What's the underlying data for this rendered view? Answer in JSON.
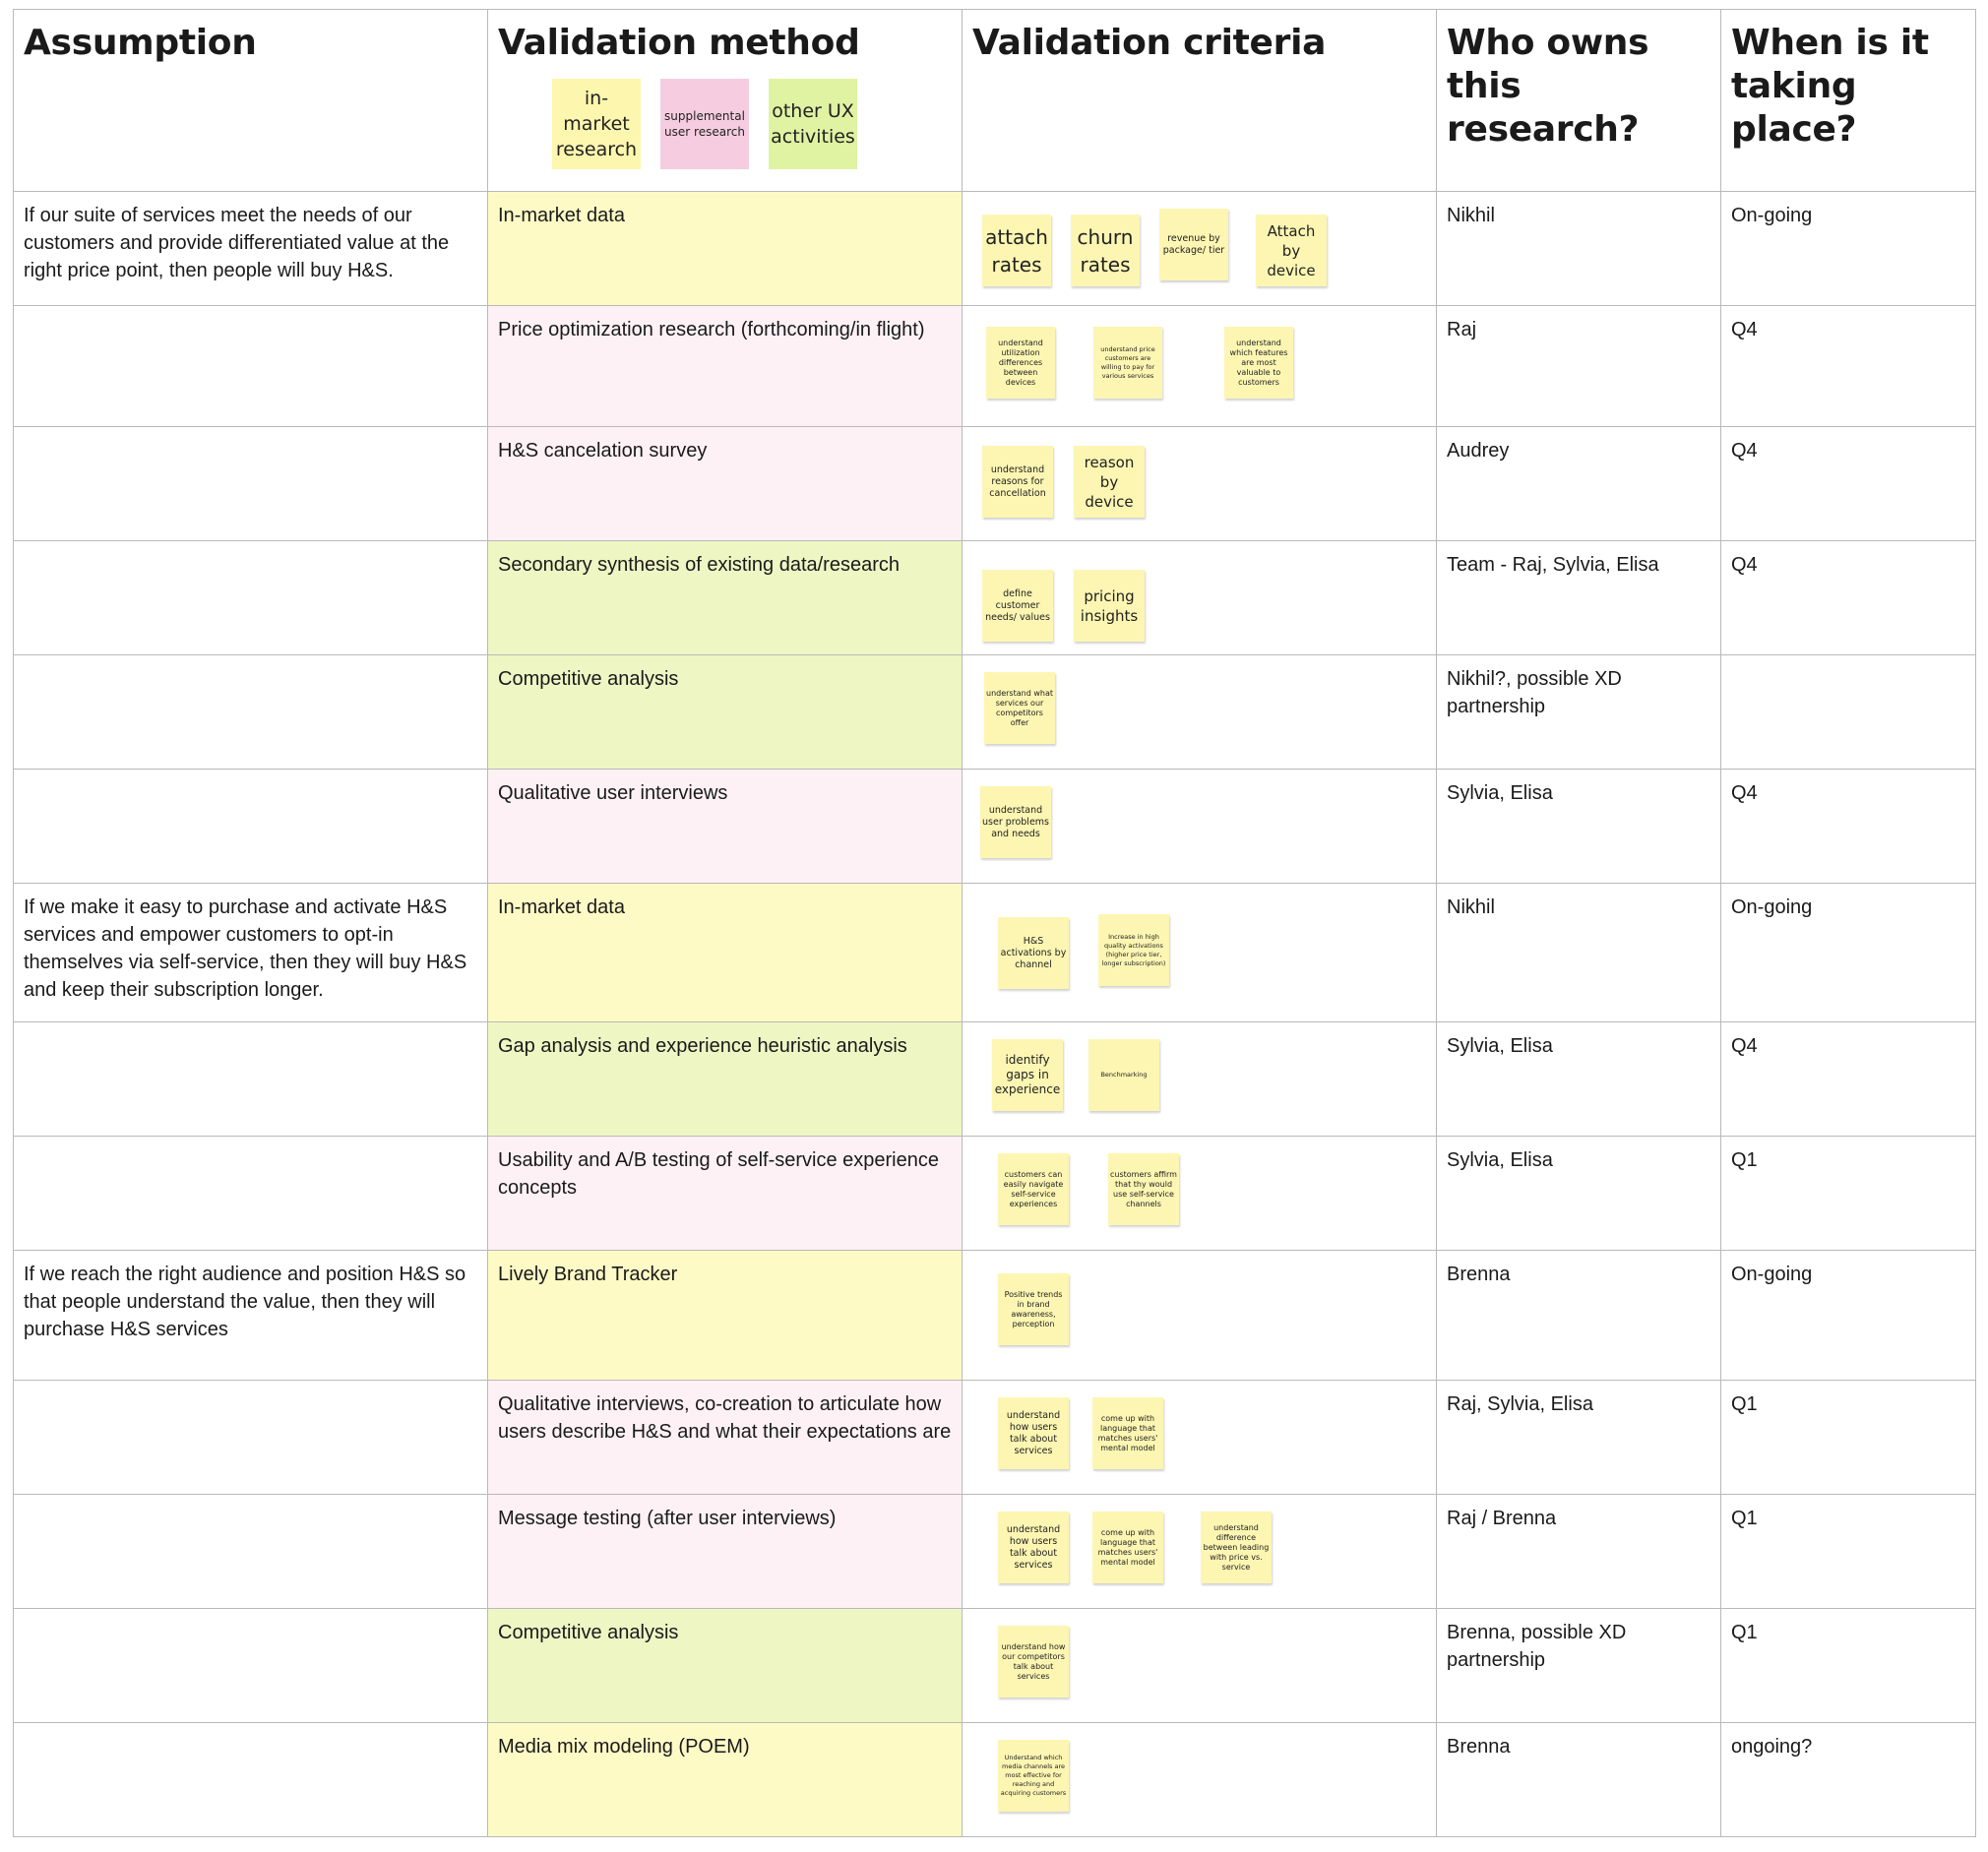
{
  "headers": {
    "assumption": "Assumption",
    "method": "Validation method",
    "criteria": "Validation criteria",
    "owner": "Who owns this research?",
    "when": "When is it taking place?"
  },
  "legend": {
    "market": "in-market research",
    "supp": "supplemental user research",
    "ux": "other UX activities"
  },
  "colors": {
    "market": "#fefac6",
    "supp": "#fdf1f5",
    "ux": "#eef6c4",
    "sticky": "#fdf6b2"
  },
  "rows": [
    {
      "assumption": "If our suite of services meet the needs of our customers and provide differentiated value at the right price point, then people will buy H&S.",
      "method": "In-market data",
      "type": "market",
      "owner": "Nikhil",
      "when": "On-going",
      "notes": [
        "attach rates",
        "churn rates",
        "revenue by package/ tier",
        "Attach by device"
      ]
    },
    {
      "assumption": "",
      "method": "Price optimization research (forthcoming/in flight)",
      "type": "supp",
      "owner": "Raj",
      "when": "Q4",
      "notes": [
        "understand utilization differences between devices",
        "understand price customers are willing to pay for various services",
        "understand which features are most valuable to customers"
      ]
    },
    {
      "assumption": "",
      "method": "H&S cancelation survey",
      "type": "supp",
      "owner": "Audrey",
      "when": "Q4",
      "notes": [
        "understand reasons for cancellation",
        "reason by device"
      ]
    },
    {
      "assumption": "",
      "method": "Secondary synthesis of existing data/research",
      "type": "ux",
      "owner": "Team - Raj, Sylvia, Elisa",
      "when": "Q4",
      "notes": [
        "define customer needs/ values",
        "pricing insights"
      ]
    },
    {
      "assumption": "",
      "method": "Competitive analysis",
      "type": "ux",
      "owner": "Nikhil?, possible XD partnership",
      "when": "",
      "notes": [
        "understand what services our competitors offer"
      ]
    },
    {
      "assumption": "",
      "method": "Qualitative user interviews",
      "type": "supp",
      "owner": "Sylvia, Elisa",
      "when": "Q4",
      "notes": [
        "understand user problems and needs"
      ]
    },
    {
      "assumption": "If we make it easy to purchase and activate H&S services and empower customers to opt-in themselves via self-service, then they will buy H&S and keep their subscription longer.",
      "method": "In-market data",
      "type": "market",
      "owner": "Nikhil",
      "when": "On-going",
      "notes": [
        "H&S activations by channel",
        "Increase in high quality activations (higher price tier, longer subscription)"
      ]
    },
    {
      "assumption": "",
      "method": "Gap analysis and experience heuristic analysis",
      "type": "ux",
      "owner": "Sylvia, Elisa",
      "when": "Q4",
      "notes": [
        "identify gaps in experience",
        "Benchmarking"
      ]
    },
    {
      "assumption": "",
      "method": "Usability and A/B testing of self-service experience concepts",
      "type": "supp",
      "owner": "Sylvia, Elisa",
      "when": "Q1",
      "notes": [
        "customers can easily navigate self-service experiences",
        "customers affirm that thy would use self-service channels"
      ]
    },
    {
      "assumption": "If we reach the right audience and position H&S so that people understand the value, then they will purchase H&S services",
      "method": "Lively Brand Tracker",
      "type": "market",
      "owner": "Brenna",
      "when": "On-going",
      "notes": [
        "Positive trends in brand awareness, perception"
      ]
    },
    {
      "assumption": "",
      "method": "Qualitative interviews, co-creation to articulate how users describe H&S and what their expectations are",
      "type": "supp",
      "owner": "Raj, Sylvia, Elisa",
      "when": "Q1",
      "notes": [
        "understand how users talk about services",
        "come up with language that matches users' mental model"
      ]
    },
    {
      "assumption": "",
      "method": "Message testing (after user interviews)",
      "type": "supp",
      "owner": "Raj / Brenna",
      "when": "Q1",
      "notes": [
        "understand how users talk about services",
        "come up with language that matches users' mental model",
        "understand difference between leading with price vs. service"
      ]
    },
    {
      "assumption": "",
      "method": "Competitive analysis",
      "type": "ux",
      "owner": "Brenna, possible XD partnership",
      "when": "Q1",
      "notes": [
        "understand how our competitors talk about services"
      ]
    },
    {
      "assumption": "",
      "method": "Media mix modeling (POEM)",
      "type": "market",
      "owner": "Brenna",
      "when": "ongoing?",
      "notes": [
        "Understand which media channels are most effective for reaching and acquiring customers"
      ]
    }
  ]
}
